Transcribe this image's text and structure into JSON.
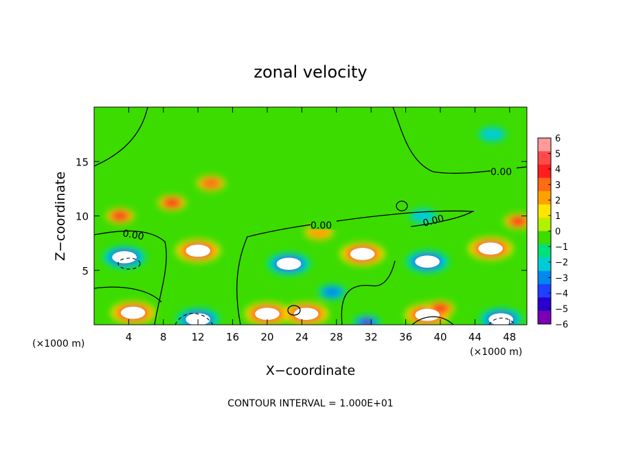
{
  "chart_data": {
    "type": "heatmap",
    "title": "zonal velocity",
    "xlabel": "X−coordinate",
    "ylabel": "Z−coordinate",
    "x_unit_left": "(×1000 m)",
    "x_unit_right": "(×1000 m)",
    "xlim": [
      0,
      50
    ],
    "ylim": [
      0,
      20
    ],
    "x_ticks": [
      4,
      8,
      12,
      16,
      20,
      24,
      28,
      32,
      36,
      40,
      44,
      48
    ],
    "y_ticks": [
      5,
      10,
      15
    ],
    "colorbar": {
      "range": [
        -6,
        6
      ],
      "ticks": [
        6,
        5,
        4,
        3,
        2,
        1,
        0,
        -1,
        -2,
        -3,
        -4,
        -5,
        -6
      ],
      "tick_labels": [
        "6",
        "5",
        "4",
        "3",
        "2",
        "1",
        "0",
        "−1",
        "−2",
        "−3",
        "−4",
        "−5",
        "−6"
      ],
      "colors": [
        "#ff9a9a",
        "#ff4a4a",
        "#ff1e1e",
        "#ff6a14",
        "#ffa200",
        "#ffe600",
        "#b4f000",
        "#3cdc00",
        "#00e07a",
        "#00ccd8",
        "#0088f0",
        "#1e40ff",
        "#2a00d0",
        "#7a00b4"
      ]
    },
    "contour_labels": [
      "0.00",
      "0.00",
      "0.00",
      "0.00"
    ],
    "footer": "CONTOUR INTERVAL = 1.000E+01",
    "features": [
      {
        "kind": "pos",
        "x": 4.5,
        "z": 1.1,
        "a": 9
      },
      {
        "kind": "pos",
        "x": 12.0,
        "z": 6.8,
        "a": 9
      },
      {
        "kind": "pos",
        "x": 20.0,
        "z": 1.0,
        "a": 9
      },
      {
        "kind": "pos",
        "x": 24.5,
        "z": 1.0,
        "a": 8
      },
      {
        "kind": "pos",
        "x": 31.0,
        "z": 6.5,
        "a": 8
      },
      {
        "kind": "pos",
        "x": 38.5,
        "z": 0.9,
        "a": 9
      },
      {
        "kind": "pos",
        "x": 45.8,
        "z": 7.0,
        "a": 8
      },
      {
        "kind": "pos",
        "x": 40.0,
        "z": 1.5,
        "a": 4
      },
      {
        "kind": "neg",
        "x": 3.5,
        "z": 6.2,
        "a": -9
      },
      {
        "kind": "neg",
        "x": 22.5,
        "z": 5.6,
        "a": -9
      },
      {
        "kind": "neg",
        "x": 38.5,
        "z": 5.8,
        "a": -9
      },
      {
        "kind": "neg",
        "x": 12.0,
        "z": 0.5,
        "a": -8
      },
      {
        "kind": "neg",
        "x": 31.5,
        "z": 0.2,
        "a": -6
      },
      {
        "kind": "neg",
        "x": 47.0,
        "z": 0.5,
        "a": -7
      },
      {
        "kind": "neg",
        "x": 27.5,
        "z": 3.0,
        "a": -3
      },
      {
        "kind": "pos",
        "x": 9.0,
        "z": 11.2,
        "a": 3.5
      },
      {
        "kind": "pos",
        "x": 13.5,
        "z": 13.0,
        "a": 3
      },
      {
        "kind": "pos",
        "x": 3.0,
        "z": 10.0,
        "a": 4
      },
      {
        "kind": "pos",
        "x": 49.0,
        "z": 9.5,
        "a": 3.5
      },
      {
        "kind": "pos",
        "x": 26.0,
        "z": 8.5,
        "a": 2
      },
      {
        "kind": "neg",
        "x": 46.0,
        "z": 17.5,
        "a": -2
      },
      {
        "kind": "neg",
        "x": 38.0,
        "z": 10.0,
        "a": -1.5
      }
    ]
  }
}
